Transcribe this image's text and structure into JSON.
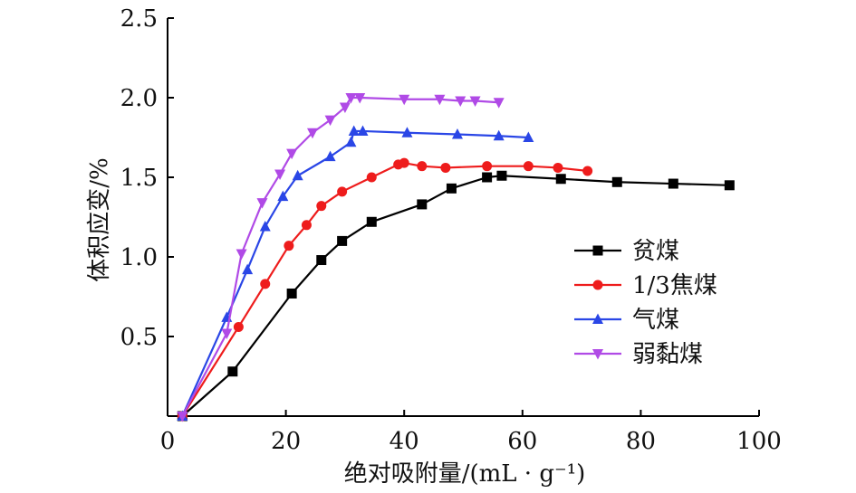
{
  "chart_data": {
    "type": "line",
    "xlabel": "绝对吸附量/(mL · g⁻¹)",
    "ylabel": "体积应变/%",
    "xlim": [
      0,
      100
    ],
    "ylim": [
      0,
      2.5
    ],
    "xticks": [
      "0",
      "20",
      "40",
      "60",
      "80",
      "100"
    ],
    "yticks": [
      "0.5",
      "1.0",
      "1.5",
      "2.0",
      "2.5"
    ],
    "legend_position": "right",
    "series": [
      {
        "name": "贫煤",
        "color": "#000000",
        "marker": "square",
        "points": [
          [
            2.5,
            0
          ],
          [
            11,
            0.28
          ],
          [
            21,
            0.77
          ],
          [
            26,
            0.98
          ],
          [
            29.5,
            1.1
          ],
          [
            34.5,
            1.22
          ],
          [
            43,
            1.33
          ],
          [
            48,
            1.43
          ],
          [
            54,
            1.5
          ],
          [
            56.5,
            1.51
          ],
          [
            66.5,
            1.49
          ],
          [
            76,
            1.47
          ],
          [
            85.5,
            1.46
          ],
          [
            95,
            1.45
          ]
        ]
      },
      {
        "name": "1/3焦煤",
        "color": "#ee1c1c",
        "marker": "circle",
        "points": [
          [
            2.5,
            0
          ],
          [
            12,
            0.56
          ],
          [
            16.5,
            0.83
          ],
          [
            20.5,
            1.07
          ],
          [
            23.5,
            1.2
          ],
          [
            26,
            1.32
          ],
          [
            29.5,
            1.41
          ],
          [
            34.5,
            1.5
          ],
          [
            39,
            1.58
          ],
          [
            40,
            1.59
          ],
          [
            43,
            1.57
          ],
          [
            47,
            1.56
          ],
          [
            54,
            1.57
          ],
          [
            61,
            1.57
          ],
          [
            66,
            1.56
          ],
          [
            71,
            1.54
          ]
        ]
      },
      {
        "name": "气煤",
        "color": "#2a46e6",
        "marker": "triangle-up",
        "points": [
          [
            2.5,
            0
          ],
          [
            10,
            0.62
          ],
          [
            13.5,
            0.92
          ],
          [
            16.5,
            1.19
          ],
          [
            19.5,
            1.38
          ],
          [
            22,
            1.51
          ],
          [
            27.5,
            1.63
          ],
          [
            31,
            1.72
          ],
          [
            31.5,
            1.79
          ],
          [
            33,
            1.79
          ],
          [
            40.5,
            1.78
          ],
          [
            49,
            1.77
          ],
          [
            56,
            1.76
          ],
          [
            61,
            1.75
          ]
        ]
      },
      {
        "name": "弱黏煤",
        "color": "#b04ae6",
        "marker": "triangle-down",
        "points": [
          [
            2.5,
            0
          ],
          [
            10,
            0.52
          ],
          [
            12.5,
            1.02
          ],
          [
            16,
            1.34
          ],
          [
            19,
            1.52
          ],
          [
            21,
            1.65
          ],
          [
            24.5,
            1.78
          ],
          [
            27.5,
            1.86
          ],
          [
            30,
            1.94
          ],
          [
            31,
            2.0
          ],
          [
            32.5,
            2.0
          ],
          [
            40,
            1.99
          ],
          [
            46,
            1.99
          ],
          [
            49.5,
            1.98
          ],
          [
            52,
            1.98
          ],
          [
            56,
            1.97
          ]
        ]
      }
    ]
  }
}
